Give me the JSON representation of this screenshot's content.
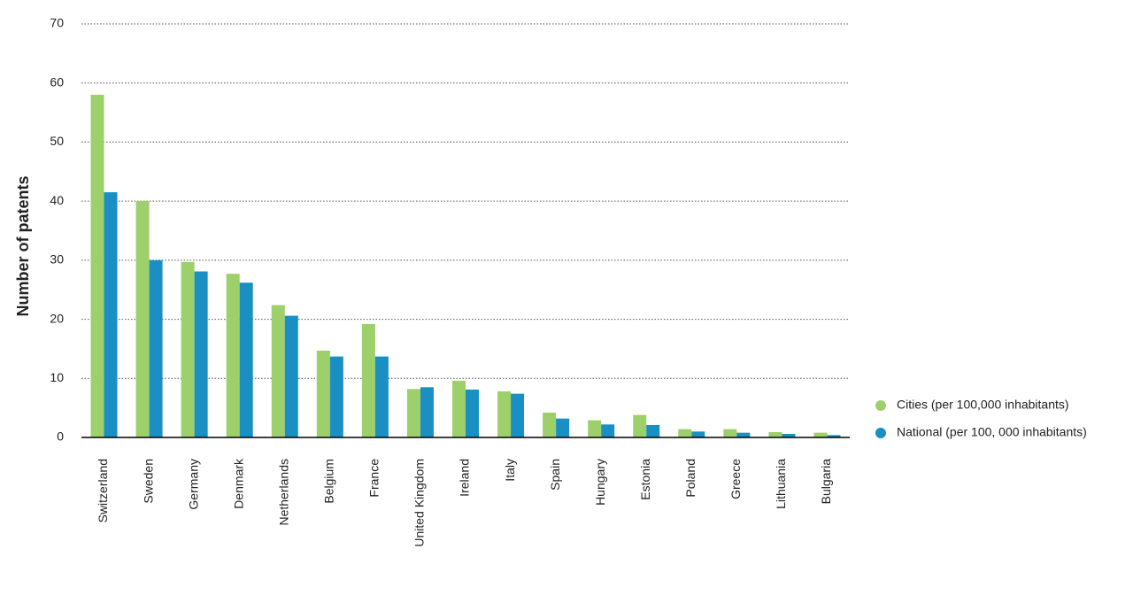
{
  "chart_data": {
    "type": "bar",
    "y_label": "Number of patents",
    "categories": [
      "Switzerland",
      "Sweden",
      "Germany",
      "Denmark",
      "Netherlands",
      "Belgium",
      "France",
      "United Kingdom",
      "Ireland",
      "Italy",
      "Spain",
      "Hungary",
      "Estonia",
      "Poland",
      "Greece",
      "Lithuania",
      "Bulgaria"
    ],
    "series": [
      {
        "name": "Cities (per 100,000 inhabitants)",
        "color": "#9dcf6a",
        "values": [
          58,
          40,
          29.7,
          27.7,
          22.4,
          14.7,
          19.2,
          8.2,
          9.6,
          7.8,
          4.2,
          2.9,
          3.8,
          1.4,
          1.4,
          0.9,
          0.8
        ]
      },
      {
        "name": "National (per 100, 000 inhabitants)",
        "color": "#1a8fc4",
        "values": [
          41.5,
          30,
          28.1,
          26.2,
          20.6,
          13.7,
          13.7,
          8.5,
          8.1,
          7.4,
          3.2,
          2.2,
          2.1,
          1.0,
          0.8,
          0.6,
          0.4
        ]
      }
    ],
    "ylim": [
      0,
      70
    ],
    "yticks": [
      0,
      10,
      20,
      30,
      40,
      50,
      60,
      70
    ],
    "grid": true,
    "legend": "right"
  }
}
